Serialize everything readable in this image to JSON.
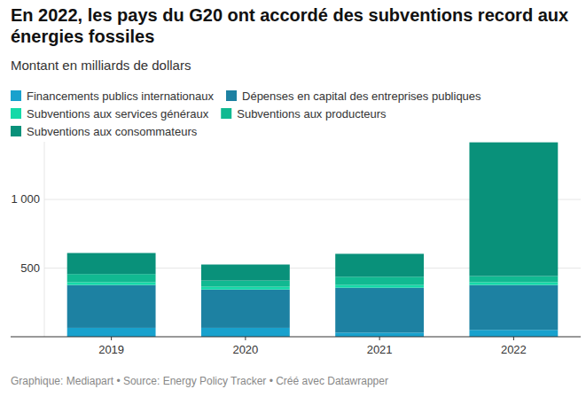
{
  "chart_data": {
    "type": "bar",
    "stacked": true,
    "title": "En 2022, les pays du G20 ont accordé des subventions record aux énergies fossiles",
    "subtitle": "Montant en milliards de dollars",
    "source": "Graphique: Mediapart • Source: Energy Policy Tracker • Créé avec Datawrapper",
    "categories": [
      "2019",
      "2020",
      "2021",
      "2022"
    ],
    "series": [
      {
        "name": "Financements publics internationaux",
        "color": "#18a1cd",
        "values": [
          65,
          65,
          30,
          50
        ]
      },
      {
        "name": "Dépenses en capital des entreprises publiques",
        "color": "#1d81a2",
        "values": [
          312,
          279,
          327,
          327
        ]
      },
      {
        "name": "Subventions aux services généraux",
        "color": "#15d9a8",
        "values": [
          20,
          20,
          20,
          20
        ]
      },
      {
        "name": "Subventions aux producteurs",
        "color": "#11b991",
        "values": [
          60,
          45,
          60,
          45
        ]
      },
      {
        "name": "Subventions aux consommateurs",
        "color": "#09917a",
        "values": [
          153,
          117,
          167,
          974
        ]
      }
    ],
    "ylim": [
      0,
      1420
    ],
    "yticks": [
      500,
      {
        "value": 1000,
        "label": "1 000"
      }
    ],
    "grid": true,
    "legend": "top"
  }
}
